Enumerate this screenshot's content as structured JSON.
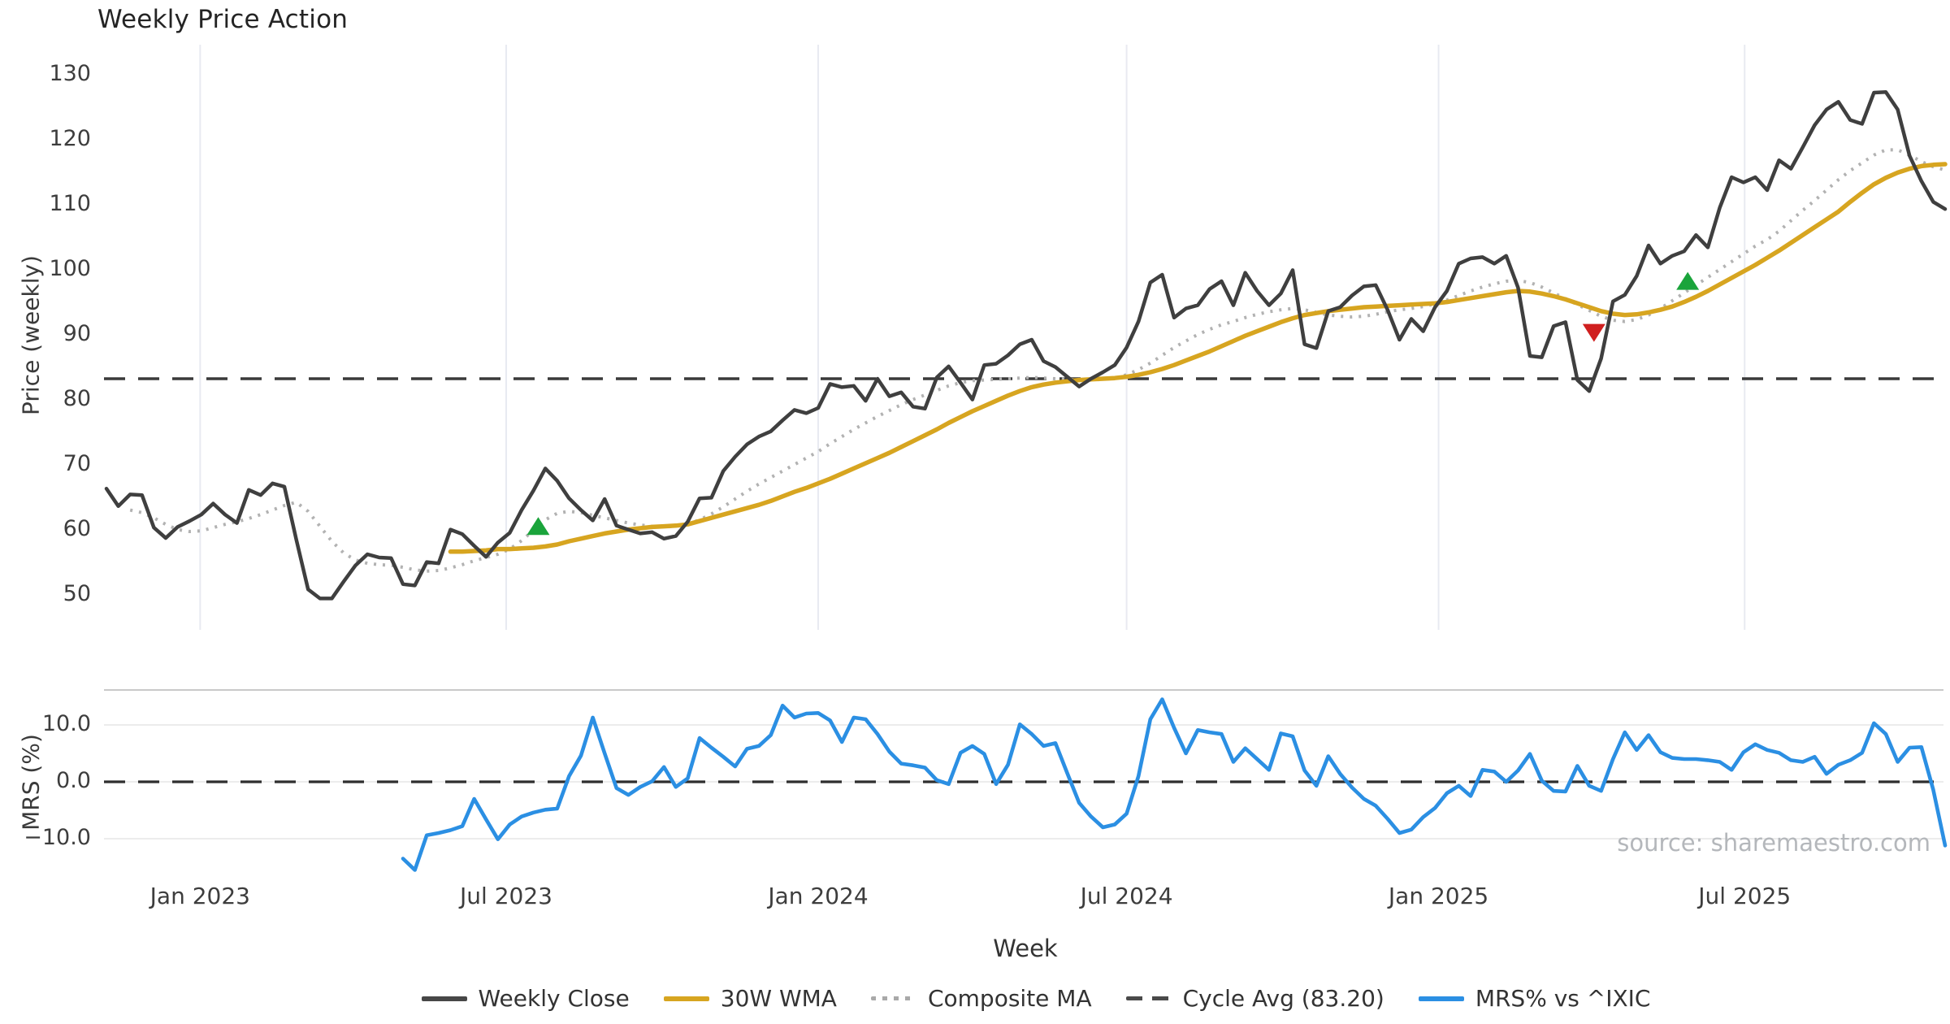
{
  "title": "Weekly Price Action",
  "xlabel": "Week",
  "source": "source: sharemaestro.com",
  "colors": {
    "close": "#3f3f3f",
    "wma": "#d7a520",
    "composite": "#b2b2b2",
    "cycle_avg": "#3a3a3a",
    "mrs": "#2b8fe3",
    "buy_marker": "#1aa43b",
    "sell_marker": "#d01f1f",
    "gridline_vertical": "#e8eaf1",
    "gridline_horizontal": "#ececec",
    "panel_border": "#c9c9c9",
    "tick_text": "#3d3d3d",
    "source_text": "#b4b7bb"
  },
  "price_panel": {
    "ylabel": "Price (weekly)",
    "yticks": [
      130,
      120,
      110,
      100,
      90,
      80,
      70,
      60,
      50
    ]
  },
  "mrs_panel": {
    "ylabel": "MRS (%)",
    "yticks_labels": [
      "10.0",
      "0.0",
      "−10.0"
    ],
    "yticks_values": [
      10,
      0,
      -10
    ]
  },
  "legend": {
    "items": [
      {
        "label": "Weekly Close",
        "swatch": "solid",
        "color": "#474747",
        "name": "weekly-close"
      },
      {
        "label": "30W WMA",
        "swatch": "solid",
        "color": "#d7a520",
        "name": "wma"
      },
      {
        "label": "Composite MA",
        "swatch": "dotted",
        "color": "#a9a9a9",
        "name": "composite-ma"
      },
      {
        "label": "Cycle Avg (83.20)",
        "swatch": "dashed",
        "color": "#4a4a4a",
        "name": "cycle-avg"
      },
      {
        "label": "MRS% vs ^IXIC",
        "swatch": "solid",
        "color": "#2b8fe3",
        "name": "mrs"
      }
    ]
  },
  "chart_data": [
    {
      "type": "line",
      "panel": "price",
      "title": "Weekly Price Action",
      "ylabel": "Price (weekly)",
      "ylim": [
        44.5,
        134.6
      ],
      "grid": "vertical-only",
      "start_date": "2022-11-07",
      "freq": "weekly",
      "x_ticks": [
        {
          "label": "Jan 2023",
          "idx": 7.9
        },
        {
          "label": "Jul 2023",
          "idx": 33.7
        },
        {
          "label": "Jan 2024",
          "idx": 60.0
        },
        {
          "label": "Jul 2024",
          "idx": 86.0
        },
        {
          "label": "Jan 2025",
          "idx": 112.3
        },
        {
          "label": "Jul 2025",
          "idx": 138.1
        }
      ],
      "cycle_avg_value": 83.2,
      "series": [
        {
          "name": "Weekly Close",
          "start_index": 0,
          "values": [
            66.3,
            63.6,
            65.4,
            65.3,
            60.3,
            58.7,
            60.4,
            61.3,
            62.3,
            64.0,
            62.3,
            61.0,
            66.1,
            65.3,
            67.1,
            66.6,
            58.5,
            50.8,
            49.4,
            49.4,
            52.0,
            54.5,
            56.2,
            55.7,
            55.6,
            51.6,
            51.4,
            55.0,
            54.8,
            60.0,
            59.3,
            57.5,
            55.8,
            58.0,
            59.5,
            63.0,
            66.0,
            69.4,
            67.5,
            64.8,
            63.0,
            61.4,
            64.7,
            60.6,
            60.0,
            59.4,
            59.6,
            58.6,
            59.0,
            61.2,
            64.8,
            64.9,
            69.0,
            71.2,
            73.1,
            74.3,
            75.1,
            76.8,
            78.4,
            77.9,
            78.7,
            82.4,
            81.9,
            82.1,
            79.8,
            83.2,
            80.5,
            81.1,
            78.9,
            78.6,
            83.4,
            85.1,
            82.6,
            80.0,
            85.3,
            85.5,
            86.8,
            88.5,
            89.2,
            85.9,
            85.0,
            83.5,
            82.0,
            83.2,
            84.2,
            85.3,
            88.0,
            92.0,
            98.0,
            99.2,
            92.6,
            94.0,
            94.5,
            97.0,
            98.2,
            94.5,
            99.5,
            96.7,
            94.5,
            96.3,
            99.9,
            88.5,
            87.9,
            93.6,
            94.2,
            96.0,
            97.4,
            97.6,
            93.8,
            89.2,
            92.4,
            90.5,
            94.2,
            96.7,
            100.9,
            101.7,
            101.9,
            100.9,
            102.1,
            97.2,
            86.7,
            86.5,
            91.3,
            91.9,
            83.0,
            81.3,
            86.3,
            95.1,
            96.1,
            99.0,
            103.7,
            100.9,
            102.1,
            102.8,
            105.3,
            103.4,
            109.5,
            114.2,
            113.4,
            114.2,
            112.2,
            116.8,
            115.5,
            118.8,
            122.2,
            124.6,
            125.8,
            123.0,
            122.4,
            127.2,
            127.3,
            124.6,
            117.5,
            113.6,
            110.4,
            109.3
          ]
        },
        {
          "name": "30W WMA",
          "start_index": 29,
          "values": [
            56.6,
            56.6,
            56.7,
            56.8,
            57.0,
            57.0,
            57.1,
            57.2,
            57.4,
            57.7,
            58.2,
            58.6,
            59.0,
            59.4,
            59.7,
            60.0,
            60.2,
            60.4,
            60.5,
            60.6,
            60.8,
            61.3,
            61.8,
            62.3,
            62.8,
            63.3,
            63.8,
            64.4,
            65.1,
            65.8,
            66.4,
            67.1,
            67.8,
            68.6,
            69.4,
            70.2,
            71.0,
            71.8,
            72.7,
            73.6,
            74.5,
            75.4,
            76.4,
            77.3,
            78.2,
            79.0,
            79.8,
            80.6,
            81.3,
            81.9,
            82.3,
            82.6,
            82.8,
            83.0,
            83.1,
            83.2,
            83.3,
            83.5,
            83.8,
            84.2,
            84.7,
            85.3,
            86.0,
            86.7,
            87.4,
            88.2,
            89.0,
            89.8,
            90.5,
            91.2,
            91.9,
            92.5,
            93.0,
            93.3,
            93.6,
            93.8,
            94.0,
            94.2,
            94.3,
            94.4,
            94.5,
            94.6,
            94.7,
            94.8,
            95.0,
            95.3,
            95.6,
            95.9,
            96.2,
            96.5,
            96.7,
            96.6,
            96.3,
            95.9,
            95.4,
            94.8,
            94.2,
            93.6,
            93.2,
            93.0,
            93.1,
            93.4,
            93.8,
            94.3,
            95.0,
            95.8,
            96.7,
            97.7,
            98.7,
            99.7,
            100.7,
            101.8,
            102.9,
            104.1,
            105.3,
            106.5,
            107.7,
            108.9,
            110.4,
            111.8,
            113.1,
            114.1,
            114.9,
            115.5,
            115.9,
            116.1,
            116.2
          ]
        },
        {
          "name": "Composite MA",
          "start_index": 2,
          "values": [
            63.0,
            62.6,
            61.8,
            60.8,
            60.0,
            59.7,
            59.8,
            60.3,
            60.8,
            61.2,
            61.7,
            62.3,
            63.0,
            63.7,
            64.2,
            62.8,
            60.5,
            58.2,
            56.4,
            55.3,
            54.8,
            54.6,
            54.5,
            54.2,
            53.8,
            53.6,
            53.7,
            54.1,
            54.6,
            55.2,
            55.7,
            56.2,
            57.0,
            58.3,
            59.9,
            61.5,
            62.5,
            62.8,
            62.6,
            62.2,
            61.8,
            61.4,
            61.0,
            60.7,
            60.5,
            60.4,
            60.5,
            60.8,
            61.5,
            62.4,
            63.5,
            64.7,
            65.9,
            67.0,
            68.0,
            69.0,
            70.0,
            71.0,
            72.0,
            73.2,
            74.3,
            75.4,
            76.4,
            77.4,
            78.3,
            79.2,
            80.0,
            80.7,
            81.4,
            82.1,
            82.6,
            82.9,
            83.0,
            83.1,
            83.2,
            83.3,
            83.4,
            83.3,
            83.2,
            83.1,
            83.0,
            83.0,
            83.1,
            83.3,
            83.8,
            84.6,
            85.6,
            86.8,
            88.0,
            89.0,
            90.0,
            90.8,
            91.5,
            92.0,
            92.6,
            93.1,
            93.5,
            93.8,
            94.0,
            93.8,
            93.4,
            93.0,
            92.8,
            92.7,
            92.8,
            93.1,
            93.5,
            93.8,
            94.0,
            94.3,
            94.7,
            95.3,
            96.0,
            96.7,
            97.3,
            97.8,
            98.2,
            98.3,
            98.0,
            97.3,
            96.4,
            95.5,
            94.6,
            93.7,
            92.8,
            92.2,
            92.0,
            92.3,
            93.0,
            94.0,
            95.2,
            96.4,
            97.6,
            98.8,
            100.0,
            101.2,
            102.4,
            103.6,
            104.6,
            105.9,
            107.5,
            109.1,
            110.6,
            112.2,
            113.8,
            115.2,
            116.4,
            117.6,
            118.4,
            118.4,
            117.6,
            116.6,
            115.8,
            115.3
          ]
        }
      ],
      "markers": [
        {
          "type": "buy",
          "idx": 36.4,
          "price": 60.3
        },
        {
          "type": "sell",
          "idx": 125.4,
          "price": 90.5
        },
        {
          "type": "buy",
          "idx": 133.3,
          "price": 98.0
        }
      ]
    },
    {
      "type": "line",
      "panel": "mrs",
      "ylabel": "MRS (%)",
      "ylim": [
        -16.1,
        16.1
      ],
      "zero_line": 0.0,
      "series": [
        {
          "name": "MRS% vs ^IXIC",
          "start_index": 25,
          "values": [
            -13.5,
            -15.5,
            -9.4,
            -9.0,
            -8.5,
            -7.8,
            -3.0,
            -6.6,
            -10.1,
            -7.5,
            -6.1,
            -5.4,
            -4.9,
            -4.7,
            1.0,
            4.6,
            11.3,
            5.0,
            -1.1,
            -2.3,
            -0.9,
            0.1,
            2.6,
            -0.9,
            0.6,
            7.7,
            6.0,
            4.4,
            2.7,
            5.8,
            6.3,
            8.2,
            13.4,
            11.3,
            12.0,
            12.1,
            10.8,
            7.0,
            11.3,
            11.0,
            8.4,
            5.3,
            3.2,
            2.9,
            2.5,
            0.3,
            -0.4,
            5.1,
            6.3,
            4.9,
            -0.4,
            3.0,
            10.1,
            8.4,
            6.3,
            6.8,
            1.5,
            -3.7,
            -6.1,
            -8.0,
            -7.5,
            -5.6,
            1.0,
            11.0,
            14.5,
            9.5,
            5.0,
            9.1,
            8.7,
            8.4,
            3.5,
            5.9,
            4.0,
            2.1,
            8.5,
            8.0,
            2.0,
            -0.7,
            4.5,
            1.4,
            -1.0,
            -3.0,
            -4.2,
            -6.5,
            -9.0,
            -8.4,
            -6.2,
            -4.6,
            -2.0,
            -0.7,
            -2.5,
            2.1,
            1.8,
            0.0,
            2.0,
            4.9,
            0.2,
            -1.6,
            -1.7,
            2.8,
            -0.7,
            -1.6,
            4.0,
            8.7,
            5.6,
            8.2,
            5.2,
            4.2,
            4.0,
            4.0,
            3.8,
            3.5,
            2.1,
            5.2,
            6.6,
            5.6,
            5.1,
            3.8,
            3.5,
            4.4,
            1.4,
            3.0,
            3.8,
            5.1,
            10.3,
            8.4,
            3.5,
            6.0,
            6.1,
            -1.4,
            -11.2
          ]
        }
      ]
    }
  ]
}
